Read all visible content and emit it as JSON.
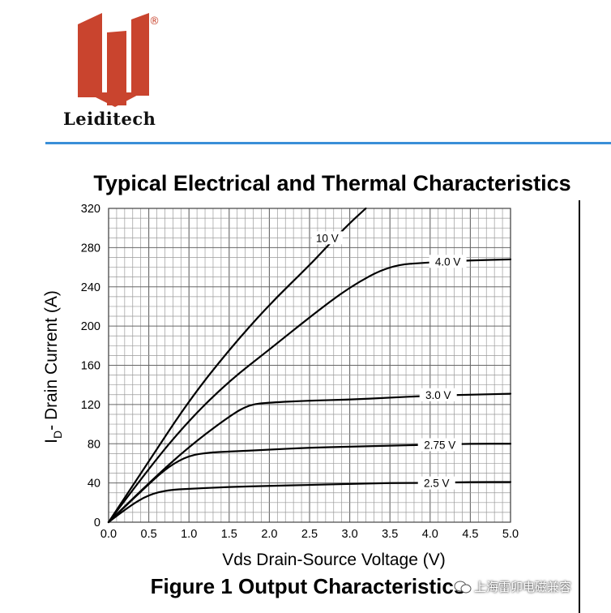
{
  "header": {
    "brand": "Leiditech",
    "registered_mark": "®"
  },
  "section_title": "Typical Electrical and Thermal Characteristics",
  "figure_caption": "Figure 1 Output Characteristics",
  "watermark": "上海雷卯电磁兼容",
  "colors": {
    "accent_rule": "#3a8fd8",
    "logo_red": "#c9442e",
    "grid": "#777777",
    "curve": "#000000"
  },
  "chart_data": {
    "type": "line",
    "title": "",
    "xlabel": "Vds Drain-Source Voltage (V)",
    "ylabel_main": "I",
    "ylabel_sub": "D",
    "ylabel_rest": "- Drain Current (A)",
    "xlim": [
      0,
      5
    ],
    "ylim": [
      0,
      320
    ],
    "xticks": [
      "0.0",
      "0.5",
      "1.0",
      "1.5",
      "2.0",
      "2.5",
      "3.0",
      "3.5",
      "4.0",
      "4.5",
      "5.0"
    ],
    "yticks": [
      "0",
      "40",
      "80",
      "120",
      "160",
      "200",
      "240",
      "280",
      "320"
    ],
    "grid": true,
    "series": [
      {
        "name": "10 V",
        "x": [
          0,
          0.5,
          1.0,
          1.5,
          2.0,
          2.5,
          2.75,
          3.0,
          3.2
        ],
        "y": [
          0,
          62,
          124,
          176,
          222,
          262,
          284,
          305,
          320
        ]
      },
      {
        "name": "4.0 V",
        "x": [
          0,
          0.5,
          1.0,
          1.5,
          2.0,
          2.5,
          3.0,
          3.5,
          4.0,
          4.5,
          5.0
        ],
        "y": [
          0,
          55,
          104,
          144,
          176,
          209,
          240,
          262,
          265,
          267,
          268
        ]
      },
      {
        "name": "3.0 V",
        "x": [
          0,
          0.5,
          1.0,
          1.5,
          1.75,
          2.0,
          2.5,
          3.0,
          3.5,
          4.0,
          4.5,
          5.0
        ],
        "y": [
          0,
          40,
          77,
          108,
          120,
          122,
          124,
          125,
          127,
          129,
          130,
          131
        ]
      },
      {
        "name": "2.75 V",
        "x": [
          0,
          0.5,
          0.75,
          1.0,
          1.25,
          1.5,
          2.0,
          2.5,
          3.0,
          3.5,
          4.0,
          4.5,
          5.0
        ],
        "y": [
          0,
          39,
          57,
          68,
          71,
          72,
          74,
          76,
          77,
          78,
          79,
          80,
          80
        ]
      },
      {
        "name": "2.5 V",
        "x": [
          0,
          0.25,
          0.5,
          0.75,
          1.0,
          1.5,
          2.0,
          2.5,
          3.0,
          3.5,
          4.0,
          4.5,
          5.0
        ],
        "y": [
          0,
          16,
          28,
          33,
          34,
          36,
          37,
          38,
          39,
          40,
          40,
          41,
          41
        ]
      }
    ],
    "annotations": [
      {
        "text": "10 V",
        "x": 2.72,
        "y": 290
      },
      {
        "text": "4.0 V",
        "x": 4.22,
        "y": 266
      },
      {
        "text": "3.0 V",
        "x": 4.1,
        "y": 130
      },
      {
        "text": "2.75 V",
        "x": 4.12,
        "y": 79
      },
      {
        "text": "2.5 V",
        "x": 4.08,
        "y": 40
      }
    ]
  }
}
